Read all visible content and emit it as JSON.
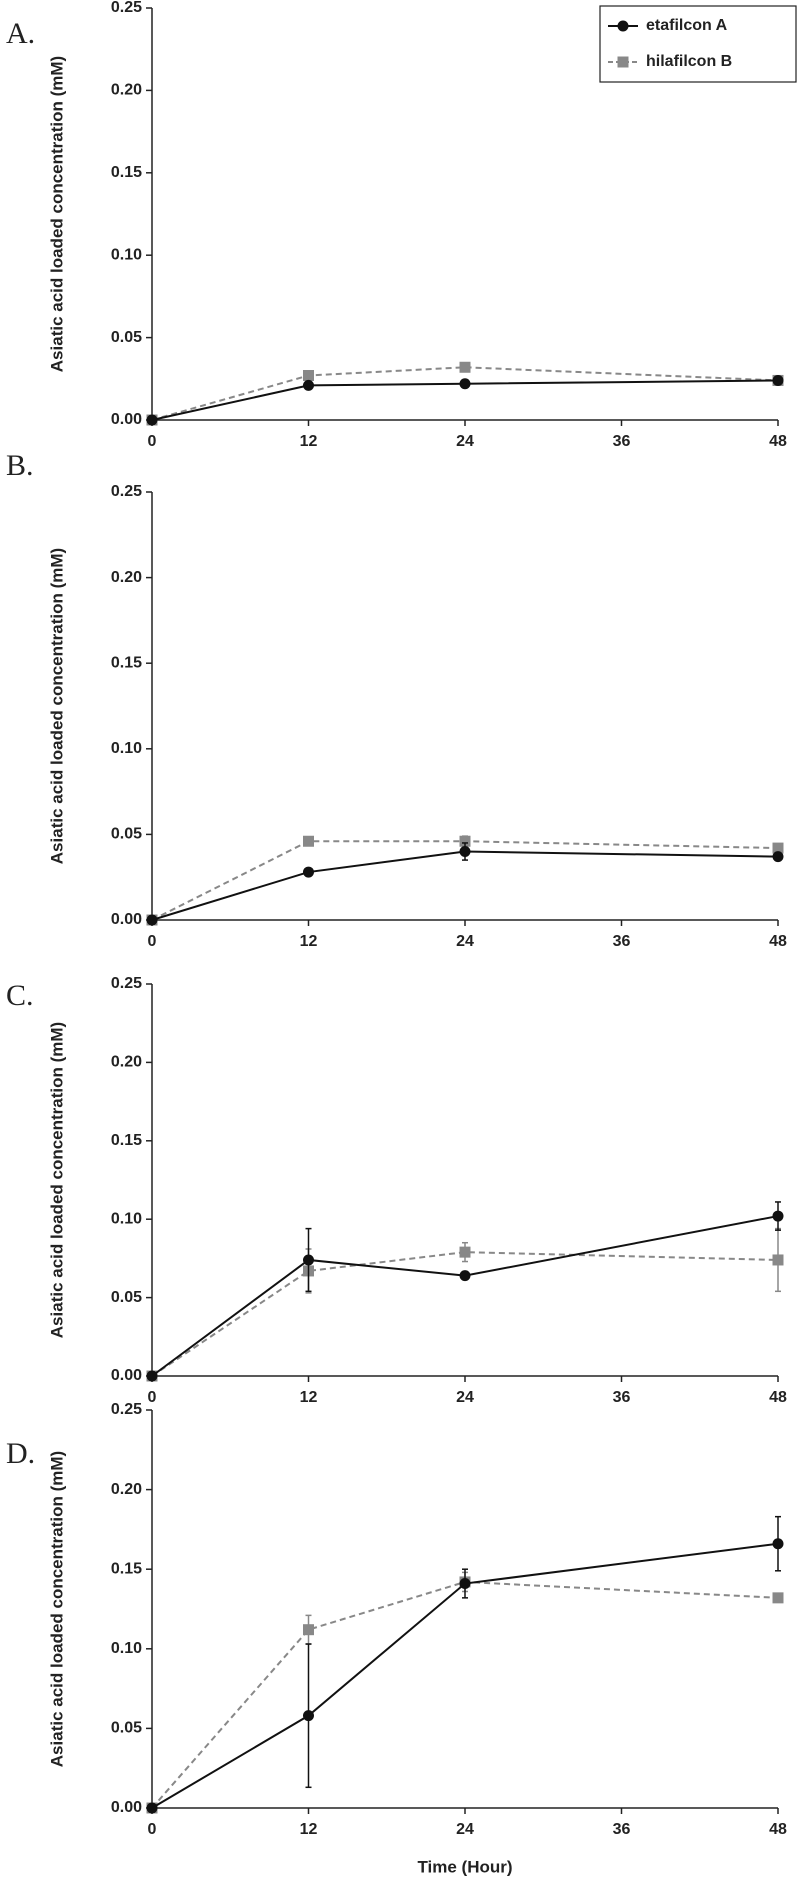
{
  "chart_data": [
    {
      "type": "line",
      "title": "A.",
      "ylabel": "Asiatic acid loaded concentration (mM)",
      "legend": "top-right",
      "x": [
        0,
        12,
        24,
        48
      ],
      "xlim": [
        0,
        48
      ],
      "xticks": [
        0,
        12,
        24,
        36,
        48
      ],
      "ylim": [
        0,
        0.25
      ],
      "yticks": [
        {
          "value": 0,
          "label": "0.00"
        },
        {
          "value": 0.05,
          "label": "0.05"
        },
        {
          "value": 0.1,
          "label": "0.10"
        },
        {
          "value": 0.15,
          "label": "0.15"
        },
        {
          "value": 0.2,
          "label": "0.20"
        },
        {
          "value": 0.25,
          "label": "0.25"
        }
      ],
      "series": [
        {
          "name": "etafilcon A",
          "color": "#111111",
          "marker": "circle",
          "dash": false,
          "values": [
            0,
            0.021,
            0.022,
            0.024
          ]
        },
        {
          "name": "hilafilcon B",
          "color": "#888888",
          "marker": "square",
          "dash": true,
          "values": [
            0,
            0.027,
            0.032,
            0.024
          ]
        }
      ]
    },
    {
      "type": "line",
      "title": "B.",
      "ylabel": "Asiatic acid loaded concentration (mM)",
      "x": [
        0,
        12,
        24,
        48
      ],
      "xlim": [
        0,
        48
      ],
      "xticks": [
        0,
        12,
        24,
        36,
        48
      ],
      "ylim": [
        0,
        0.25
      ],
      "yticks": [
        {
          "value": 0,
          "label": "0.00"
        },
        {
          "value": 0.05,
          "label": "0.05"
        },
        {
          "value": 0.1,
          "label": "0.10"
        },
        {
          "value": 0.15,
          "label": "0.15"
        },
        {
          "value": 0.2,
          "label": "0.20"
        },
        {
          "value": 0.25,
          "label": "0.25"
        }
      ],
      "series": [
        {
          "name": "etafilcon A",
          "color": "#111111",
          "marker": "circle",
          "dash": false,
          "values": [
            0,
            0.028,
            0.04,
            0.037
          ],
          "errors": [
            0,
            0.001,
            0.005,
            0.002
          ]
        },
        {
          "name": "hilafilcon B",
          "color": "#888888",
          "marker": "square",
          "dash": true,
          "values": [
            0,
            0.046,
            0.046,
            0.042
          ],
          "errors": [
            0,
            0.001,
            0.003,
            0.002
          ]
        }
      ]
    },
    {
      "type": "line",
      "title": "C.",
      "ylabel": "Asiatic acid loaded concentration (mM)",
      "x": [
        0,
        12,
        24,
        48
      ],
      "xlim": [
        0,
        48
      ],
      "xticks": [
        0,
        12,
        24,
        36,
        48
      ],
      "ylim": [
        0,
        0.25
      ],
      "yticks": [
        {
          "value": 0,
          "label": "0.00"
        },
        {
          "value": 0.05,
          "label": "0.05"
        },
        {
          "value": 0.1,
          "label": "0.10"
        },
        {
          "value": 0.15,
          "label": "0.15"
        },
        {
          "value": 0.2,
          "label": "0.20"
        },
        {
          "value": 0.25,
          "label": "0.25"
        }
      ],
      "series": [
        {
          "name": "etafilcon A",
          "color": "#111111",
          "marker": "circle",
          "dash": false,
          "values": [
            0,
            0.074,
            0.064,
            0.102
          ],
          "errors": [
            0,
            0.02,
            0.002,
            0.009
          ]
        },
        {
          "name": "hilafilcon B",
          "color": "#888888",
          "marker": "square",
          "dash": true,
          "values": [
            0,
            0.067,
            0.079,
            0.074
          ],
          "errors": [
            0,
            0.014,
            0.006,
            0.02
          ]
        }
      ]
    },
    {
      "type": "line",
      "title": "D.",
      "ylabel": "Asiatic acid loaded concentration (mM)",
      "xlabel": "Time (Hour)",
      "x": [
        0,
        12,
        24,
        48
      ],
      "xlim": [
        0,
        48
      ],
      "xticks": [
        0,
        12,
        24,
        36,
        48
      ],
      "ylim": [
        0,
        0.25
      ],
      "yticks": [
        {
          "value": 0,
          "label": "0.00"
        },
        {
          "value": 0.05,
          "label": "0.05"
        },
        {
          "value": 0.1,
          "label": "0.10"
        },
        {
          "value": 0.15,
          "label": "0.15"
        },
        {
          "value": 0.2,
          "label": "0.20"
        },
        {
          "value": 0.25,
          "label": "0.25"
        }
      ],
      "series": [
        {
          "name": "etafilcon A",
          "color": "#111111",
          "marker": "circle",
          "dash": false,
          "values": [
            0,
            0.058,
            0.141,
            0.166
          ],
          "errors": [
            0,
            0.045,
            0.009,
            0.017
          ]
        },
        {
          "name": "hilafilcon B",
          "color": "#888888",
          "marker": "square",
          "dash": true,
          "values": [
            0,
            0.112,
            0.142,
            0.132
          ],
          "errors": [
            0,
            0.009,
            0.006,
            0.002
          ]
        }
      ]
    }
  ]
}
